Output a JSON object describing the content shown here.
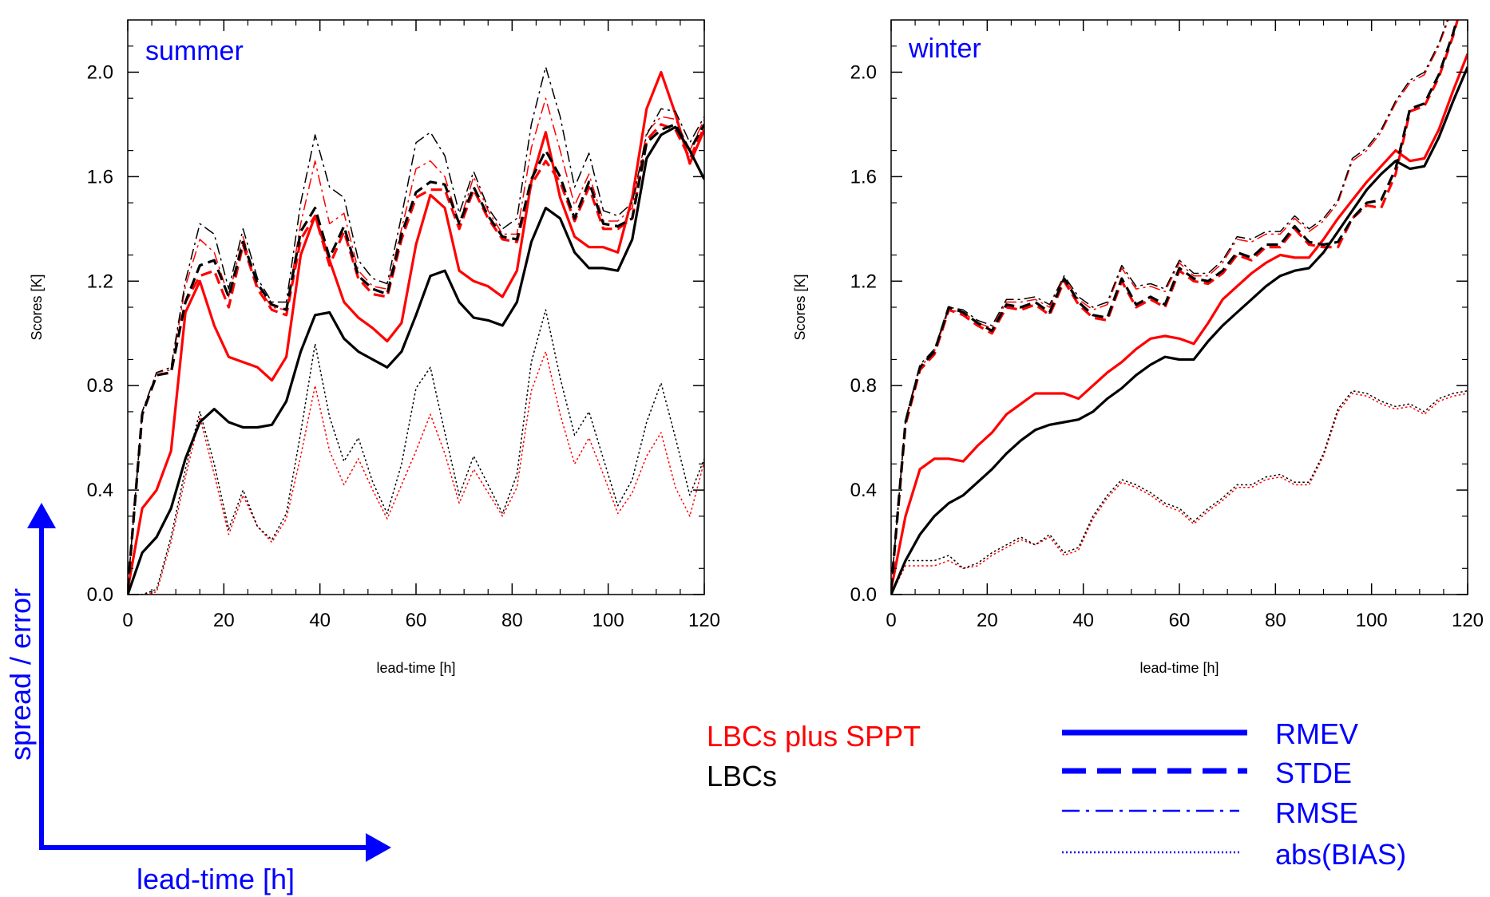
{
  "chart_data": [
    {
      "type": "line",
      "title": "summer",
      "xlabel": "lead-time [h]",
      "ylabel": "Scores [K]",
      "xlim": [
        0,
        120
      ],
      "ylim": [
        0,
        2.2
      ],
      "xticks": [
        "0",
        "20",
        "40",
        "60",
        "80",
        "100",
        "120"
      ],
      "yticks": [
        "0.0",
        "0.4",
        "0.8",
        "1.2",
        "1.6",
        "2.0"
      ],
      "x": [
        0,
        3,
        6,
        9,
        12,
        15,
        18,
        21,
        24,
        27,
        30,
        33,
        36,
        39,
        42,
        45,
        48,
        51,
        54,
        57,
        60,
        63,
        66,
        69,
        72,
        75,
        78,
        81,
        84,
        87,
        90,
        93,
        96,
        99,
        102,
        105,
        108,
        111,
        114,
        117,
        120
      ],
      "series": [
        {
          "name": "RMEV",
          "experiment": "LBCs plus SPPT",
          "color": "#ff0000",
          "style": "solid",
          "values": [
            0.02,
            0.33,
            0.4,
            0.55,
            1.08,
            1.2,
            1.03,
            0.91,
            0.89,
            0.87,
            0.82,
            0.91,
            1.3,
            1.45,
            1.28,
            1.12,
            1.06,
            1.02,
            0.97,
            1.04,
            1.34,
            1.53,
            1.48,
            1.24,
            1.2,
            1.18,
            1.14,
            1.24,
            1.58,
            1.77,
            1.52,
            1.37,
            1.33,
            1.33,
            1.31,
            1.52,
            1.86,
            2.0,
            1.84,
            1.65,
            1.78
          ]
        },
        {
          "name": "STDE",
          "experiment": "LBCs plus SPPT",
          "color": "#ff0000",
          "style": "dash",
          "values": [
            0.02,
            0.69,
            0.84,
            0.85,
            1.12,
            1.22,
            1.24,
            1.1,
            1.34,
            1.17,
            1.09,
            1.07,
            1.36,
            1.45,
            1.26,
            1.39,
            1.21,
            1.15,
            1.14,
            1.36,
            1.52,
            1.55,
            1.55,
            1.4,
            1.55,
            1.44,
            1.36,
            1.35,
            1.57,
            1.66,
            1.58,
            1.43,
            1.56,
            1.4,
            1.4,
            1.44,
            1.74,
            1.8,
            1.78,
            1.67,
            1.79
          ]
        },
        {
          "name": "RMSE",
          "experiment": "LBCs plus SPPT",
          "color": "#ff0000",
          "style": "dashdot",
          "values": [
            0.02,
            0.7,
            0.85,
            0.86,
            1.18,
            1.36,
            1.31,
            1.14,
            1.37,
            1.18,
            1.1,
            1.09,
            1.42,
            1.66,
            1.42,
            1.46,
            1.24,
            1.18,
            1.17,
            1.4,
            1.63,
            1.66,
            1.6,
            1.42,
            1.6,
            1.47,
            1.38,
            1.38,
            1.71,
            1.9,
            1.7,
            1.49,
            1.61,
            1.43,
            1.43,
            1.48,
            1.77,
            1.83,
            1.82,
            1.7,
            1.82
          ]
        },
        {
          "name": "abs(BIAS)",
          "experiment": "LBCs plus SPPT",
          "color": "#ff0000",
          "style": "dot",
          "values": [
            0.0,
            0.0,
            0.01,
            0.2,
            0.45,
            0.68,
            0.46,
            0.23,
            0.38,
            0.26,
            0.2,
            0.29,
            0.53,
            0.8,
            0.55,
            0.42,
            0.52,
            0.4,
            0.29,
            0.42,
            0.55,
            0.69,
            0.54,
            0.35,
            0.48,
            0.39,
            0.3,
            0.41,
            0.78,
            0.93,
            0.69,
            0.5,
            0.6,
            0.46,
            0.31,
            0.39,
            0.53,
            0.62,
            0.41,
            0.3,
            0.51
          ]
        },
        {
          "name": "RMEV",
          "experiment": "LBCs",
          "color": "#000000",
          "style": "solid",
          "values": [
            0.0,
            0.16,
            0.22,
            0.33,
            0.52,
            0.66,
            0.71,
            0.66,
            0.64,
            0.64,
            0.65,
            0.74,
            0.93,
            1.07,
            1.08,
            0.98,
            0.93,
            0.9,
            0.87,
            0.93,
            1.07,
            1.22,
            1.24,
            1.12,
            1.06,
            1.05,
            1.03,
            1.12,
            1.35,
            1.48,
            1.44,
            1.31,
            1.25,
            1.25,
            1.24,
            1.36,
            1.67,
            1.76,
            1.79,
            1.7,
            1.59
          ]
        },
        {
          "name": "STDE",
          "experiment": "LBCs",
          "color": "#000000",
          "style": "dash",
          "values": [
            0.02,
            0.69,
            0.84,
            0.85,
            1.12,
            1.26,
            1.28,
            1.14,
            1.35,
            1.19,
            1.11,
            1.09,
            1.39,
            1.48,
            1.29,
            1.41,
            1.22,
            1.17,
            1.15,
            1.38,
            1.54,
            1.58,
            1.57,
            1.42,
            1.56,
            1.45,
            1.37,
            1.36,
            1.59,
            1.7,
            1.6,
            1.44,
            1.58,
            1.42,
            1.41,
            1.44,
            1.73,
            1.78,
            1.8,
            1.7,
            1.8
          ]
        },
        {
          "name": "RMSE",
          "experiment": "LBCs",
          "color": "#000000",
          "style": "dashdot",
          "values": [
            0.02,
            0.7,
            0.85,
            0.87,
            1.2,
            1.42,
            1.38,
            1.17,
            1.4,
            1.21,
            1.12,
            1.12,
            1.5,
            1.76,
            1.56,
            1.52,
            1.28,
            1.21,
            1.19,
            1.45,
            1.73,
            1.77,
            1.68,
            1.46,
            1.62,
            1.48,
            1.4,
            1.44,
            1.8,
            2.02,
            1.83,
            1.56,
            1.69,
            1.47,
            1.45,
            1.5,
            1.76,
            1.86,
            1.85,
            1.73,
            1.83
          ]
        },
        {
          "name": "abs(BIAS)",
          "experiment": "LBCs",
          "color": "#000000",
          "style": "dot",
          "values": [
            0.0,
            0.0,
            0.02,
            0.22,
            0.48,
            0.7,
            0.5,
            0.25,
            0.4,
            0.26,
            0.21,
            0.31,
            0.62,
            0.96,
            0.68,
            0.51,
            0.6,
            0.43,
            0.31,
            0.5,
            0.79,
            0.87,
            0.62,
            0.38,
            0.53,
            0.42,
            0.31,
            0.46,
            0.89,
            1.09,
            0.83,
            0.61,
            0.7,
            0.52,
            0.34,
            0.44,
            0.66,
            0.81,
            0.6,
            0.38,
            0.52
          ]
        }
      ]
    },
    {
      "type": "line",
      "title": "winter",
      "xlabel": "lead-time [h]",
      "ylabel": "Scores [K]",
      "xlim": [
        0,
        120
      ],
      "ylim": [
        0,
        2.2
      ],
      "xticks": [
        "0",
        "20",
        "40",
        "60",
        "80",
        "100",
        "120"
      ],
      "yticks": [
        "0.0",
        "0.4",
        "0.8",
        "1.2",
        "1.6",
        "2.0"
      ],
      "x": [
        0,
        3,
        6,
        9,
        12,
        15,
        18,
        21,
        24,
        27,
        30,
        33,
        36,
        39,
        42,
        45,
        48,
        51,
        54,
        57,
        60,
        63,
        66,
        69,
        72,
        75,
        78,
        81,
        84,
        87,
        90,
        93,
        96,
        99,
        102,
        105,
        108,
        111,
        114,
        117,
        120
      ],
      "series": [
        {
          "name": "RMEV",
          "experiment": "LBCs plus SPPT",
          "color": "#ff0000",
          "style": "solid",
          "values": [
            0.02,
            0.3,
            0.48,
            0.52,
            0.52,
            0.51,
            0.57,
            0.62,
            0.69,
            0.73,
            0.77,
            0.77,
            0.77,
            0.75,
            0.8,
            0.85,
            0.89,
            0.94,
            0.98,
            0.99,
            0.98,
            0.96,
            1.04,
            1.13,
            1.18,
            1.23,
            1.27,
            1.3,
            1.29,
            1.29,
            1.36,
            1.44,
            1.51,
            1.58,
            1.64,
            1.7,
            1.66,
            1.67,
            1.78,
            1.93,
            2.07
          ]
        },
        {
          "name": "STDE",
          "experiment": "LBCs plus SPPT",
          "color": "#ff0000",
          "style": "dash",
          "values": [
            0.02,
            0.65,
            0.86,
            0.92,
            1.09,
            1.07,
            1.03,
            1.0,
            1.1,
            1.09,
            1.11,
            1.07,
            1.2,
            1.11,
            1.06,
            1.05,
            1.2,
            1.1,
            1.13,
            1.1,
            1.24,
            1.2,
            1.19,
            1.23,
            1.3,
            1.28,
            1.33,
            1.33,
            1.4,
            1.34,
            1.33,
            1.33,
            1.44,
            1.49,
            1.48,
            1.61,
            1.85,
            1.87,
            1.98,
            2.14,
            2.34
          ]
        },
        {
          "name": "RMSE",
          "experiment": "LBCs plus SPPT",
          "color": "#ff0000",
          "style": "dashdot",
          "values": [
            0.02,
            0.66,
            0.87,
            0.93,
            1.09,
            1.08,
            1.04,
            1.02,
            1.12,
            1.12,
            1.13,
            1.1,
            1.21,
            1.13,
            1.09,
            1.11,
            1.25,
            1.17,
            1.18,
            1.16,
            1.27,
            1.22,
            1.22,
            1.27,
            1.36,
            1.35,
            1.38,
            1.38,
            1.44,
            1.39,
            1.43,
            1.5,
            1.66,
            1.7,
            1.77,
            1.88,
            1.96,
            1.99,
            2.1,
            2.25,
            2.41
          ]
        },
        {
          "name": "abs(BIAS)",
          "experiment": "LBCs plus SPPT",
          "color": "#ff0000",
          "style": "dot",
          "values": [
            0.0,
            0.11,
            0.11,
            0.11,
            0.13,
            0.1,
            0.11,
            0.15,
            0.18,
            0.21,
            0.19,
            0.22,
            0.15,
            0.17,
            0.29,
            0.37,
            0.43,
            0.41,
            0.38,
            0.34,
            0.32,
            0.27,
            0.32,
            0.36,
            0.41,
            0.41,
            0.44,
            0.45,
            0.42,
            0.42,
            0.53,
            0.7,
            0.77,
            0.76,
            0.73,
            0.71,
            0.72,
            0.69,
            0.74,
            0.76,
            0.77
          ]
        },
        {
          "name": "RMEV",
          "experiment": "LBCs",
          "color": "#000000",
          "style": "solid",
          "values": [
            0.0,
            0.13,
            0.23,
            0.3,
            0.35,
            0.38,
            0.43,
            0.48,
            0.54,
            0.59,
            0.63,
            0.65,
            0.66,
            0.67,
            0.7,
            0.75,
            0.79,
            0.84,
            0.88,
            0.91,
            0.9,
            0.9,
            0.97,
            1.03,
            1.08,
            1.13,
            1.18,
            1.22,
            1.24,
            1.25,
            1.31,
            1.39,
            1.47,
            1.55,
            1.61,
            1.66,
            1.63,
            1.64,
            1.75,
            1.89,
            2.02
          ]
        },
        {
          "name": "STDE",
          "experiment": "LBCs",
          "color": "#000000",
          "style": "dash",
          "values": [
            0.02,
            0.66,
            0.87,
            0.93,
            1.1,
            1.08,
            1.04,
            1.01,
            1.11,
            1.1,
            1.12,
            1.08,
            1.21,
            1.12,
            1.07,
            1.06,
            1.21,
            1.11,
            1.14,
            1.11,
            1.25,
            1.21,
            1.2,
            1.24,
            1.31,
            1.29,
            1.34,
            1.34,
            1.41,
            1.35,
            1.34,
            1.35,
            1.44,
            1.5,
            1.51,
            1.63,
            1.86,
            1.88,
            1.99,
            2.15,
            2.35
          ]
        },
        {
          "name": "RMSE",
          "experiment": "LBCs",
          "color": "#000000",
          "style": "dashdot",
          "values": [
            0.02,
            0.67,
            0.88,
            0.94,
            1.1,
            1.09,
            1.05,
            1.03,
            1.13,
            1.13,
            1.14,
            1.11,
            1.22,
            1.14,
            1.1,
            1.12,
            1.26,
            1.18,
            1.19,
            1.17,
            1.28,
            1.23,
            1.23,
            1.28,
            1.37,
            1.36,
            1.39,
            1.39,
            1.45,
            1.4,
            1.44,
            1.51,
            1.67,
            1.71,
            1.78,
            1.89,
            1.97,
            2.0,
            2.11,
            2.26,
            2.42
          ]
        },
        {
          "name": "abs(BIAS)",
          "experiment": "LBCs",
          "color": "#000000",
          "style": "dot",
          "values": [
            0.0,
            0.13,
            0.13,
            0.13,
            0.15,
            0.1,
            0.12,
            0.16,
            0.19,
            0.22,
            0.19,
            0.23,
            0.16,
            0.18,
            0.3,
            0.38,
            0.44,
            0.42,
            0.39,
            0.35,
            0.33,
            0.28,
            0.33,
            0.37,
            0.42,
            0.42,
            0.45,
            0.46,
            0.43,
            0.43,
            0.54,
            0.71,
            0.78,
            0.77,
            0.74,
            0.72,
            0.73,
            0.7,
            0.75,
            0.77,
            0.78
          ]
        }
      ]
    }
  ],
  "legend": {
    "experiments": [
      {
        "label": "LBCs plus SPPT",
        "color": "#ff0000"
      },
      {
        "label": "LBCs",
        "color": "#000000"
      }
    ],
    "styles": [
      {
        "label": "RMEV",
        "style": "solid"
      },
      {
        "label": "STDE",
        "style": "dash"
      },
      {
        "label": "RMSE",
        "style": "dashdot"
      },
      {
        "label": "abs(BIAS)",
        "style": "dot"
      }
    ],
    "color": "#0000ff"
  },
  "arrows": {
    "vertical_label": "spread / error",
    "horizontal_label": "lead-time [h]",
    "color": "#0000ff"
  }
}
